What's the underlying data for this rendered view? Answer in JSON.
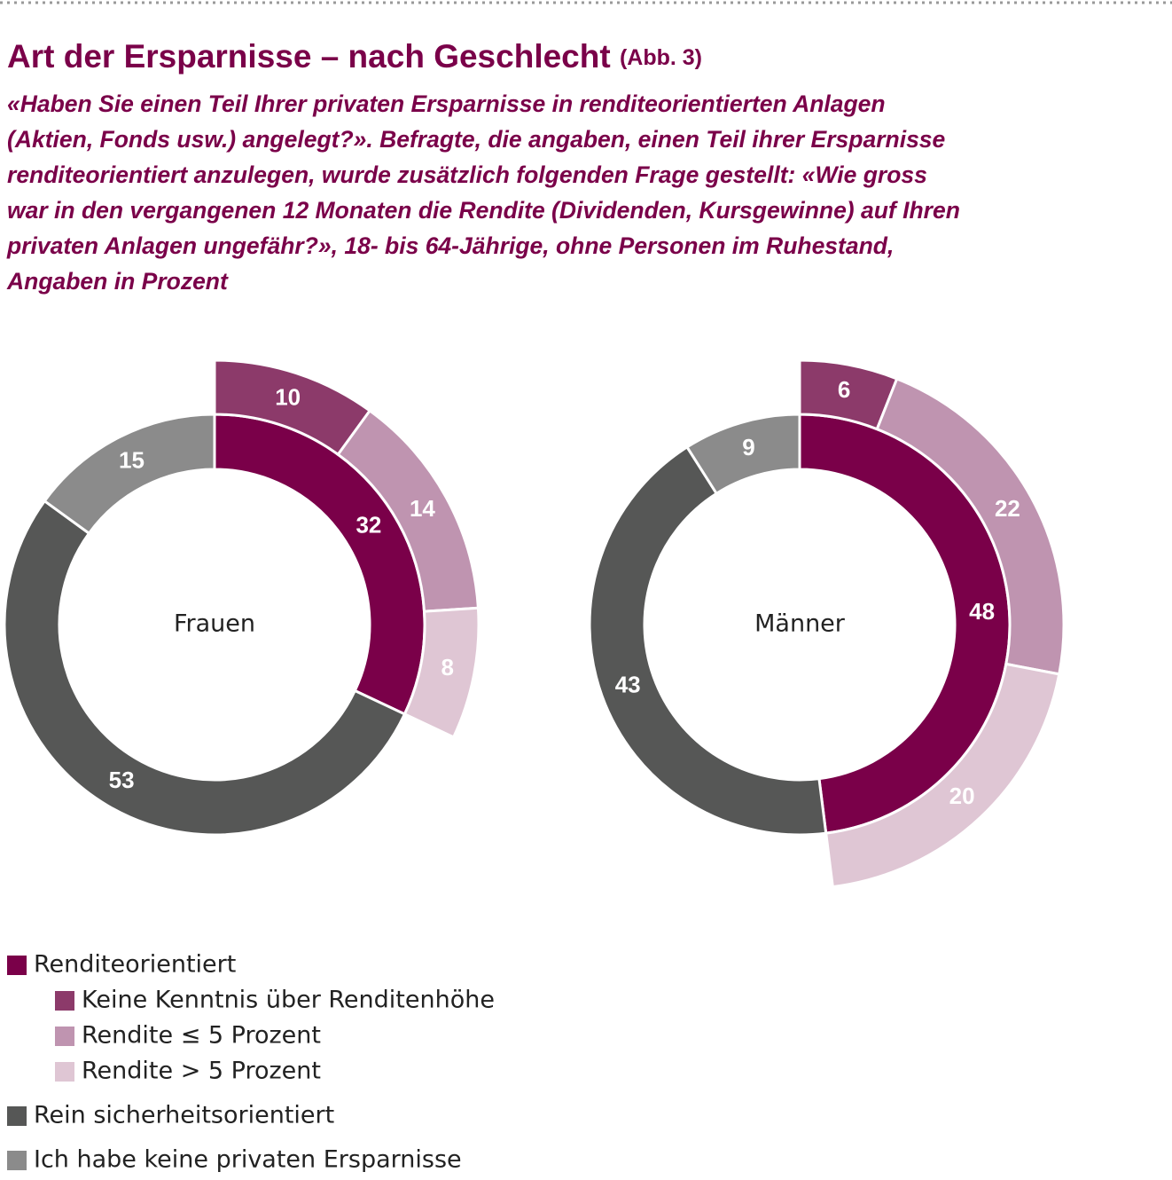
{
  "title": "Art der Ersparnisse – nach Geschlecht",
  "title_note": "(Abb. 3)",
  "subtitle_lines": [
    "«Haben Sie einen Teil Ihrer privaten Ersparnisse in renditeorientierten Anlagen",
    "(Aktien, Fonds usw.) angelegt?». Befragte, die angaben, einen Teil ihrer Ersparnisse",
    "renditeorientiert anzulegen, wurde zusätzlich folgenden Frage gestellt: «Wie gross",
    "war in den vergangenen 12 Monaten die Rendite (Dividenden, Kursgewinne) auf Ihren",
    "privaten Anlagen ungefähr?», 18- bis 64-Jährige, ohne Personen im Ruhestand,",
    "Angaben in Prozent"
  ],
  "legend": [
    {
      "name": "Renditeorientiert",
      "color": "#7a0049",
      "ring": "inner"
    },
    {
      "name": "Keine Kenntnis über Renditenhöhe",
      "color": "#8c3a6a",
      "ring": "outer"
    },
    {
      "name": "Rendite ≤ 5 Prozent",
      "color": "#bf94b0",
      "ring": "outer"
    },
    {
      "name": "Rendite > 5 Prozent",
      "color": "#dfc6d4",
      "ring": "outer"
    },
    {
      "name": "Rein sicherheitsorientiert",
      "color": "#565756",
      "ring": "inner"
    },
    {
      "name": "Ich habe keine privaten Ersparnisse",
      "color": "#8b8b8b",
      "ring": "inner"
    }
  ],
  "chart_data": [
    {
      "type": "donut",
      "label": "Frauen",
      "inner_values": [
        32,
        53,
        15
      ],
      "outer_values": [
        10,
        14,
        8
      ]
    },
    {
      "type": "donut",
      "label": "Männer",
      "inner_values": [
        48,
        43,
        9
      ],
      "outer_values": [
        6,
        22,
        20
      ]
    }
  ]
}
